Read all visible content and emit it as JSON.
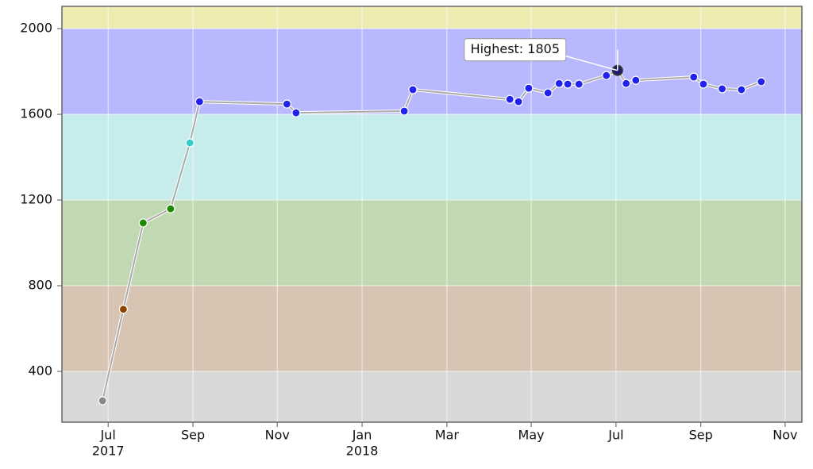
{
  "chart_data": {
    "type": "line",
    "annotation": "Highest: 1805",
    "series": [
      {
        "color": "#aaaaaa",
        "x": [
          2017.489,
          2017.53,
          2017.569,
          2017.623,
          2017.661,
          2017.68,
          2017.852,
          2017.87,
          2018.083,
          2018.1,
          2018.291,
          2018.308,
          2018.328,
          2018.366,
          2018.388,
          2018.405,
          2018.427,
          2018.481,
          2018.503,
          2018.52,
          2018.539,
          2018.653,
          2018.672,
          2018.709,
          2018.747,
          2018.786
        ],
        "values": [
          263,
          690,
          1093,
          1159,
          1467,
          1659,
          1648,
          1607,
          1615,
          1715,
          1670,
          1659,
          1722,
          1700,
          1744,
          1741,
          1741,
          1781,
          1805,
          1744,
          1759,
          1774,
          1741,
          1719,
          1715,
          1752
        ]
      }
    ],
    "bands": [
      {
        "min": null,
        "max": 400,
        "color": "#d8d8d8",
        "point_color": "#888888"
      },
      {
        "min": 400,
        "max": 800,
        "color": "#d8c4b2",
        "point_color": "#8b4500"
      },
      {
        "min": 800,
        "max": 1200,
        "color": "#c1d9b3",
        "point_color": "#1f8a00"
      },
      {
        "min": 1200,
        "max": 1600,
        "color": "#c7ecec",
        "point_color": "#33cccc"
      },
      {
        "min": 1600,
        "max": 2000,
        "color": "#b8b8ff",
        "point_color": "#2222ee"
      },
      {
        "min": 2000,
        "max": null,
        "color": "#eeebb0",
        "point_color": "#aaaa00"
      }
    ],
    "xlim": [
      2017.409,
      2018.866
    ],
    "ylim": [
      163,
      2104
    ],
    "xticks": [
      {
        "value": 2017.5,
        "label": "Jul",
        "year": "2017"
      },
      {
        "value": 2017.667,
        "label": "Sep"
      },
      {
        "value": 2017.833,
        "label": "Nov"
      },
      {
        "value": 2018.0,
        "label": "Jan",
        "year": "2018"
      },
      {
        "value": 2018.167,
        "label": "Mar"
      },
      {
        "value": 2018.333,
        "label": "May"
      },
      {
        "value": 2018.5,
        "label": "Jul"
      },
      {
        "value": 2018.667,
        "label": "Sep"
      },
      {
        "value": 2018.833,
        "label": "Nov"
      }
    ],
    "yticks": [
      400,
      800,
      1200,
      1600,
      2000
    ],
    "grid": true
  }
}
